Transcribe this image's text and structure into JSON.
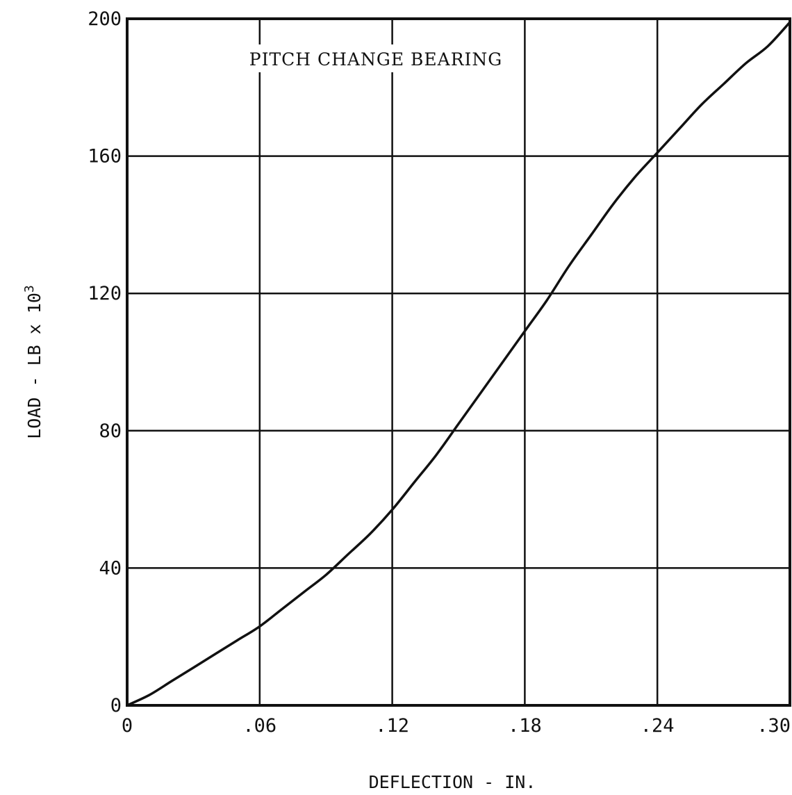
{
  "chart_data": {
    "type": "line",
    "title": "PITCH CHANGE BEARING",
    "xlabel": "DEFLECTION - IN.",
    "ylabel": {
      "base": "LOAD - LB x 10",
      "exponent": "3"
    },
    "xlim": [
      0,
      0.3
    ],
    "ylim": [
      0,
      200
    ],
    "x_ticks": [
      {
        "value": 0,
        "label": "0"
      },
      {
        "value": 0.06,
        "label": ".06"
      },
      {
        "value": 0.12,
        "label": ".12"
      },
      {
        "value": 0.18,
        "label": ".18"
      },
      {
        "value": 0.24,
        "label": ".24"
      },
      {
        "value": 0.3,
        "label": ".30"
      }
    ],
    "y_ticks": [
      {
        "value": 0,
        "label": "0"
      },
      {
        "value": 40,
        "label": "40"
      },
      {
        "value": 80,
        "label": "80"
      },
      {
        "value": 120,
        "label": "120"
      },
      {
        "value": 160,
        "label": "160"
      },
      {
        "value": 200,
        "label": "200"
      }
    ],
    "grid": true,
    "series": [
      {
        "x": [
          0,
          0.01,
          0.02,
          0.03,
          0.04,
          0.05,
          0.06,
          0.07,
          0.08,
          0.09,
          0.1,
          0.11,
          0.12,
          0.13,
          0.14,
          0.15,
          0.16,
          0.17,
          0.18,
          0.19,
          0.2,
          0.21,
          0.22,
          0.23,
          0.24,
          0.25,
          0.26,
          0.27,
          0.28,
          0.29,
          0.3
        ],
        "y": [
          0,
          3,
          7,
          11,
          15,
          19,
          23,
          28,
          33,
          38,
          44,
          50,
          57,
          65,
          73,
          82,
          91,
          100,
          109,
          118,
          128,
          137,
          146,
          154,
          161,
          168,
          175,
          181,
          187,
          192,
          199
        ]
      }
    ]
  }
}
